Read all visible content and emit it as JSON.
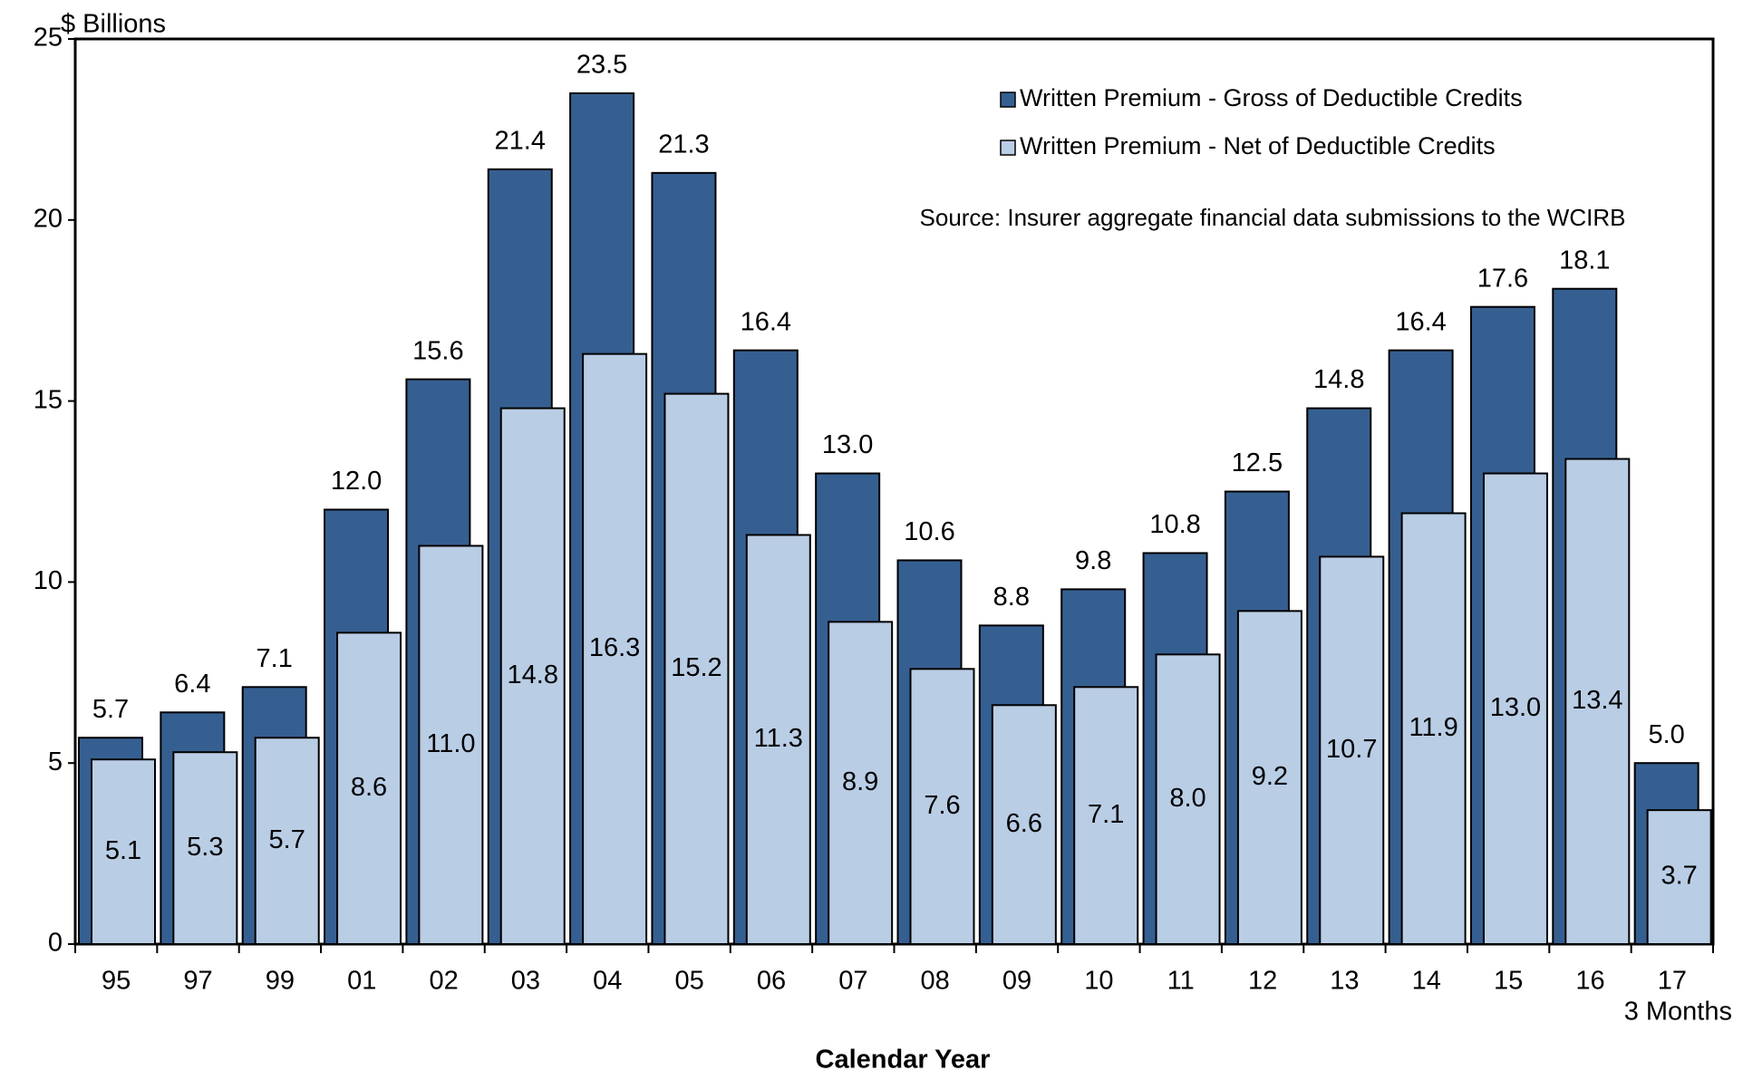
{
  "chart_data": {
    "type": "bar",
    "y_axis_label": "$ Billions",
    "x_axis_label": "Calendar Year",
    "x_annotation": "3 Months",
    "source": "Source: Insurer aggregate financial data submissions to the WCIRB",
    "categories": [
      "95",
      "97",
      "99",
      "01",
      "02",
      "03",
      "04",
      "05",
      "06",
      "07",
      "08",
      "09",
      "10",
      "11",
      "12",
      "13",
      "14",
      "15",
      "16",
      "17"
    ],
    "series": [
      {
        "name": "Written Premium - Gross of Deductible Credits",
        "color": "#365f91",
        "values": [
          5.7,
          6.4,
          7.1,
          12.0,
          15.6,
          21.4,
          23.5,
          21.3,
          16.4,
          13.0,
          10.6,
          8.8,
          9.8,
          10.8,
          12.5,
          14.8,
          16.4,
          17.6,
          18.1,
          5.0
        ],
        "value_labels": [
          "5.7",
          "6.4",
          "7.1",
          "12.0",
          "15.6",
          "21.4",
          "23.5",
          "21.3",
          "16.4",
          "13.0",
          "10.6",
          "8.8",
          "9.8",
          "10.8",
          "12.5",
          "14.8",
          "16.4",
          "17.6",
          "18.1",
          "5.0"
        ]
      },
      {
        "name": "Written Premium - Net of Deductible Credits",
        "color": "#b9cde5",
        "values": [
          5.1,
          5.3,
          5.7,
          8.6,
          11.0,
          14.8,
          16.3,
          15.2,
          11.3,
          8.9,
          7.6,
          6.6,
          7.1,
          8.0,
          9.2,
          10.7,
          11.9,
          13.0,
          13.4,
          3.7
        ],
        "value_labels": [
          "5.1",
          "5.3",
          "5.7",
          "8.6",
          "11.0",
          "14.8",
          "16.3",
          "15.2",
          "11.3",
          "8.9",
          "7.6",
          "6.6",
          "7.1",
          "8.0",
          "9.2",
          "10.7",
          "11.9",
          "13.0",
          "13.4",
          "3.7"
        ]
      }
    ],
    "ylim": [
      0,
      25
    ],
    "yticks": [
      0,
      5,
      10,
      15,
      20,
      25
    ],
    "grid": false
  }
}
